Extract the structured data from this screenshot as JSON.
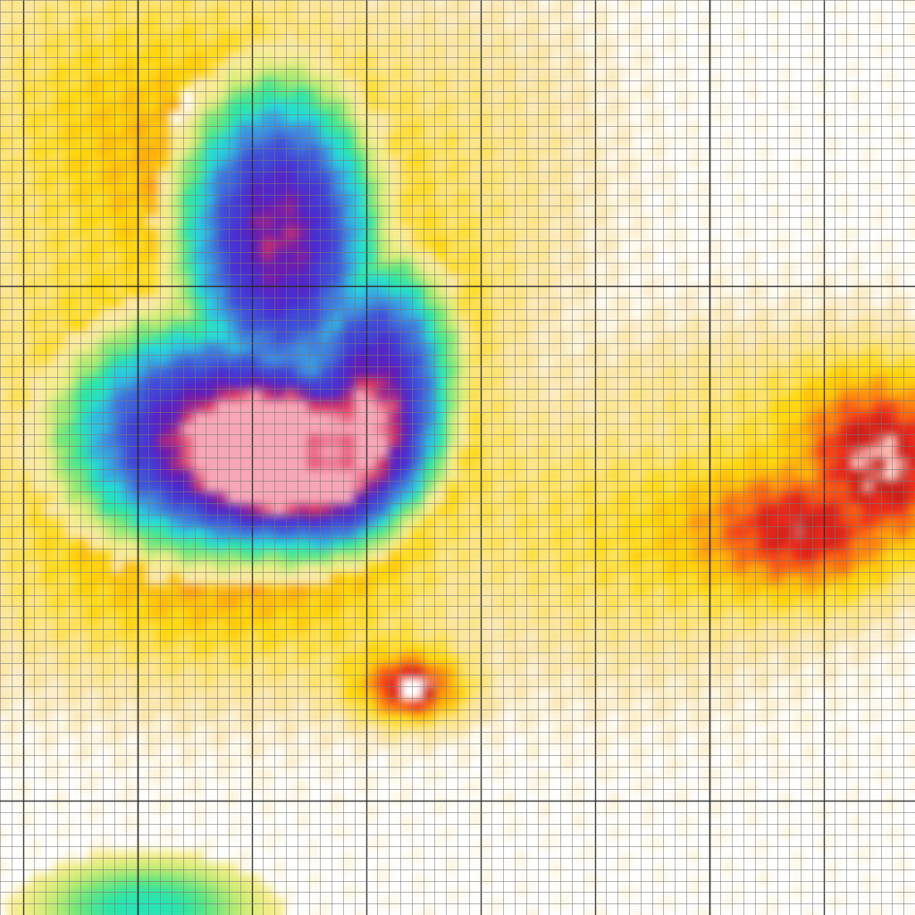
{
  "chart_data": {
    "type": "heatmap",
    "title": "",
    "xlabel": "",
    "ylabel": "",
    "grid": true,
    "legend": "none",
    "cell_grid": [
      80,
      80
    ],
    "major_grid_every": 10,
    "major_grid_first": 2,
    "colors": {
      "grid_minor": "#7a7a7a",
      "grid_major": "#2a2a2a",
      "background": "#ffffff"
    },
    "colorscale": [
      {
        "value": 0.0,
        "color": "#ffffff"
      },
      {
        "value": 0.22,
        "color": "#ffffff"
      },
      {
        "value": 0.3,
        "color": "#fbe7b2"
      },
      {
        "value": 0.37,
        "color": "#fde57a"
      },
      {
        "value": 0.45,
        "color": "#ffd90a"
      },
      {
        "value": 0.52,
        "color": "#ffb00c"
      },
      {
        "value": 0.58,
        "color": "#ff6f10"
      },
      {
        "value": 0.64,
        "color": "#ef2b1c"
      },
      {
        "value": 0.7,
        "color": "#c21d18"
      },
      {
        "value": 0.74,
        "color": "#ffc9c1"
      },
      {
        "value": 0.78,
        "color": "#ffffff"
      }
    ],
    "colorscale_low": [
      {
        "value": 0.0,
        "color": "#f6a6b6"
      },
      {
        "value": 0.05,
        "color": "#e0335c"
      },
      {
        "value": 0.12,
        "color": "#6a1bb3"
      },
      {
        "value": 0.22,
        "color": "#4a2cd2"
      },
      {
        "value": 0.34,
        "color": "#3f52d9"
      },
      {
        "value": 0.46,
        "color": "#3f8ee0"
      },
      {
        "value": 0.56,
        "color": "#25dde0"
      },
      {
        "value": 0.64,
        "color": "#29e6a6"
      },
      {
        "value": 0.72,
        "color": "#6ee77a"
      },
      {
        "value": 0.8,
        "color": "#c5ec72"
      },
      {
        "value": 0.88,
        "color": "#f7ee8a"
      },
      {
        "value": 1.0,
        "color": "#fbe7b2"
      }
    ],
    "features": [
      {
        "kind": "depression",
        "x": 24.5,
        "y": 21.0,
        "sx": 8.5,
        "sy": 13.5,
        "amp": 1.0
      },
      {
        "kind": "depression",
        "x": 19.0,
        "y": 38.0,
        "sx": 13.0,
        "sy": 10.0,
        "amp": 1.0
      },
      {
        "kind": "depression",
        "x": 33.0,
        "y": 32.0,
        "sx": 7.0,
        "sy": 10.0,
        "amp": 0.9
      },
      {
        "kind": "depression_core",
        "x": 27.5,
        "y": 40.5,
        "sx": 5.5,
        "sy": 4.0,
        "amp": 1.0
      },
      {
        "kind": "depression_core",
        "x": 30.5,
        "y": 41.5,
        "sx": 5.0,
        "sy": 5.0,
        "amp": 0.85
      },
      {
        "kind": "pit",
        "x": 29.0,
        "y": 39.5,
        "sx": 1.4,
        "sy": 1.2,
        "amp": 1.0
      },
      {
        "kind": "peak",
        "x": 36.0,
        "y": 60.0,
        "sx": 3.5,
        "sy": 2.2,
        "amp": 1.0
      },
      {
        "kind": "peak_spot",
        "x": 36.2,
        "y": 60.0,
        "sx": 0.9,
        "sy": 0.9,
        "amp": 1.0
      },
      {
        "kind": "ridge",
        "x": 77.0,
        "y": 41.0,
        "sx": 5.5,
        "sy": 6.0,
        "amp": 1.0
      },
      {
        "kind": "ridge",
        "x": 71.0,
        "y": 46.0,
        "sx": 7.0,
        "sy": 4.5,
        "amp": 0.85
      },
      {
        "kind": "plateau",
        "x": 8.0,
        "y": 11.0,
        "sx": 9.0,
        "sy": 12.0,
        "amp": 1.0
      },
      {
        "kind": "plateau",
        "x": 55.0,
        "y": 47.0,
        "sx": 12.0,
        "sy": 9.0,
        "amp": 0.9
      },
      {
        "kind": "plateau",
        "x": 20.0,
        "y": 52.0,
        "sx": 18.0,
        "sy": 7.0,
        "amp": 0.8
      },
      {
        "kind": "plateau",
        "x": 64.0,
        "y": 36.0,
        "sx": 12.0,
        "sy": 6.0,
        "amp": 0.7
      },
      {
        "kind": "plateau",
        "x": 43.0,
        "y": 14.0,
        "sx": 8.0,
        "sy": 12.0,
        "amp": 0.55
      },
      {
        "kind": "hole",
        "x": 17.5,
        "y": 13.0,
        "sx": 1.6,
        "sy": 3.5,
        "amp": 1.0
      },
      {
        "kind": "low_bottom",
        "x": 13.0,
        "y": 79.0,
        "sx": 7.0,
        "sy": 3.0,
        "amp": 1.0
      }
    ]
  }
}
